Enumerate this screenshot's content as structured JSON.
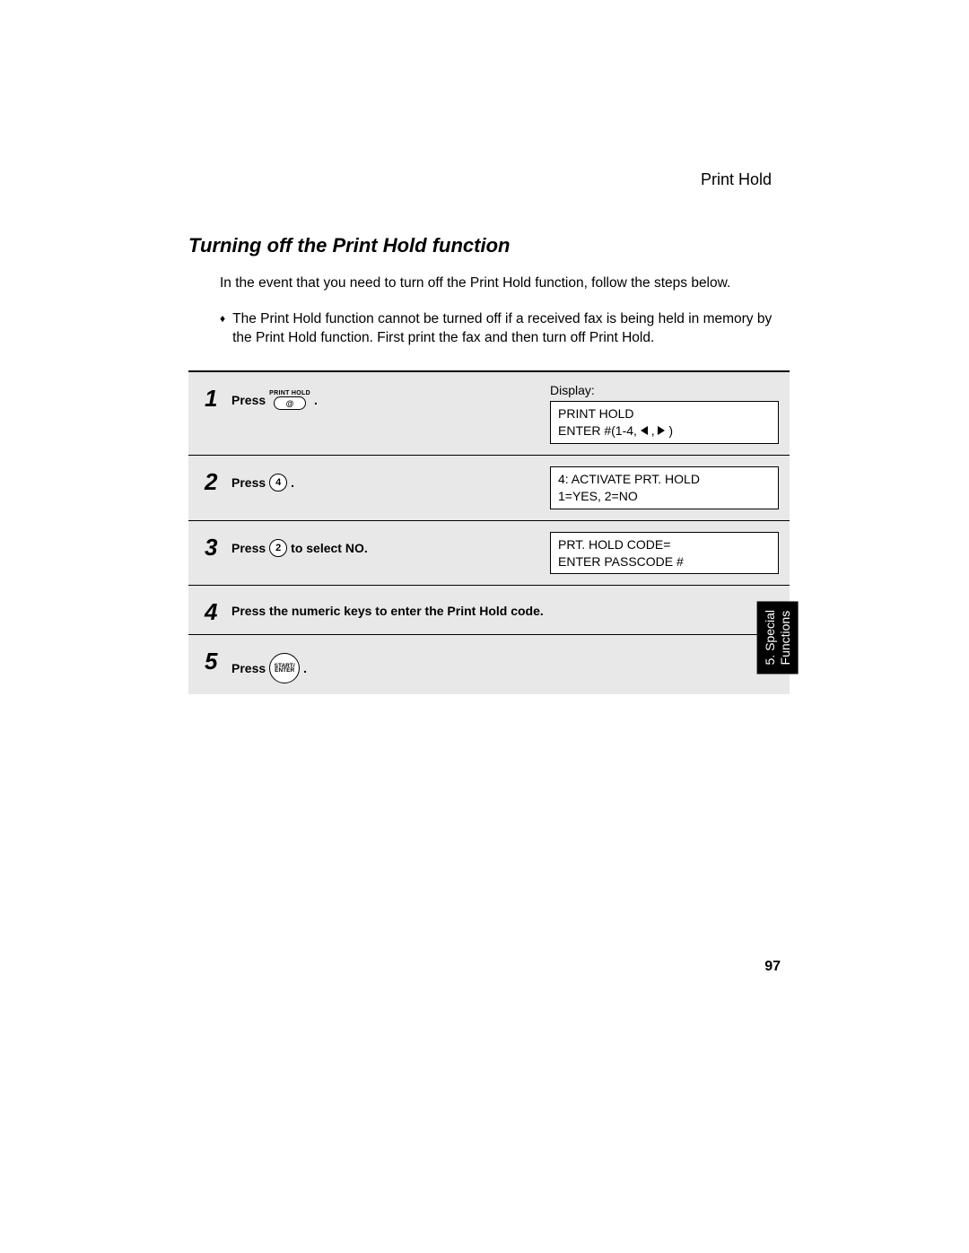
{
  "header": {
    "section_label": "Print Hold"
  },
  "title": "Turning off the Print Hold function",
  "intro": "In the event that you need to turn off the Print Hold function, follow the steps below.",
  "bullet": "The Print Hold function cannot be turned off if a received fax is being held in memory by the Print Hold function. First print the fax and then turn off Print Hold.",
  "display_label": "Display:",
  "steps": [
    {
      "num": "1",
      "press": "Press",
      "button_label": "PRINT HOLD",
      "display_line1": "PRINT HOLD",
      "display_line2a": "ENTER #(1-4, ",
      "display_line2b": " , ",
      "display_line2c": " )"
    },
    {
      "num": "2",
      "press": "Press",
      "key": "4",
      "suffix": ".",
      "display_line1": "4: ACTIVATE PRT. HOLD",
      "display_line2": "1=YES, 2=NO"
    },
    {
      "num": "3",
      "press": "Press",
      "key": "2",
      "suffix": " to select NO.",
      "display_line1": "PRT. HOLD CODE=",
      "display_line2": "ENTER PASSCODE #"
    },
    {
      "num": "4",
      "text": "Press the numeric keys to enter the Print Hold code."
    },
    {
      "num": "5",
      "press": "Press",
      "start_line1": "START/",
      "start_line2": "ENTER",
      "suffix": "."
    }
  ],
  "side_tab": "5. Special\nFunctions",
  "page_number": "97"
}
